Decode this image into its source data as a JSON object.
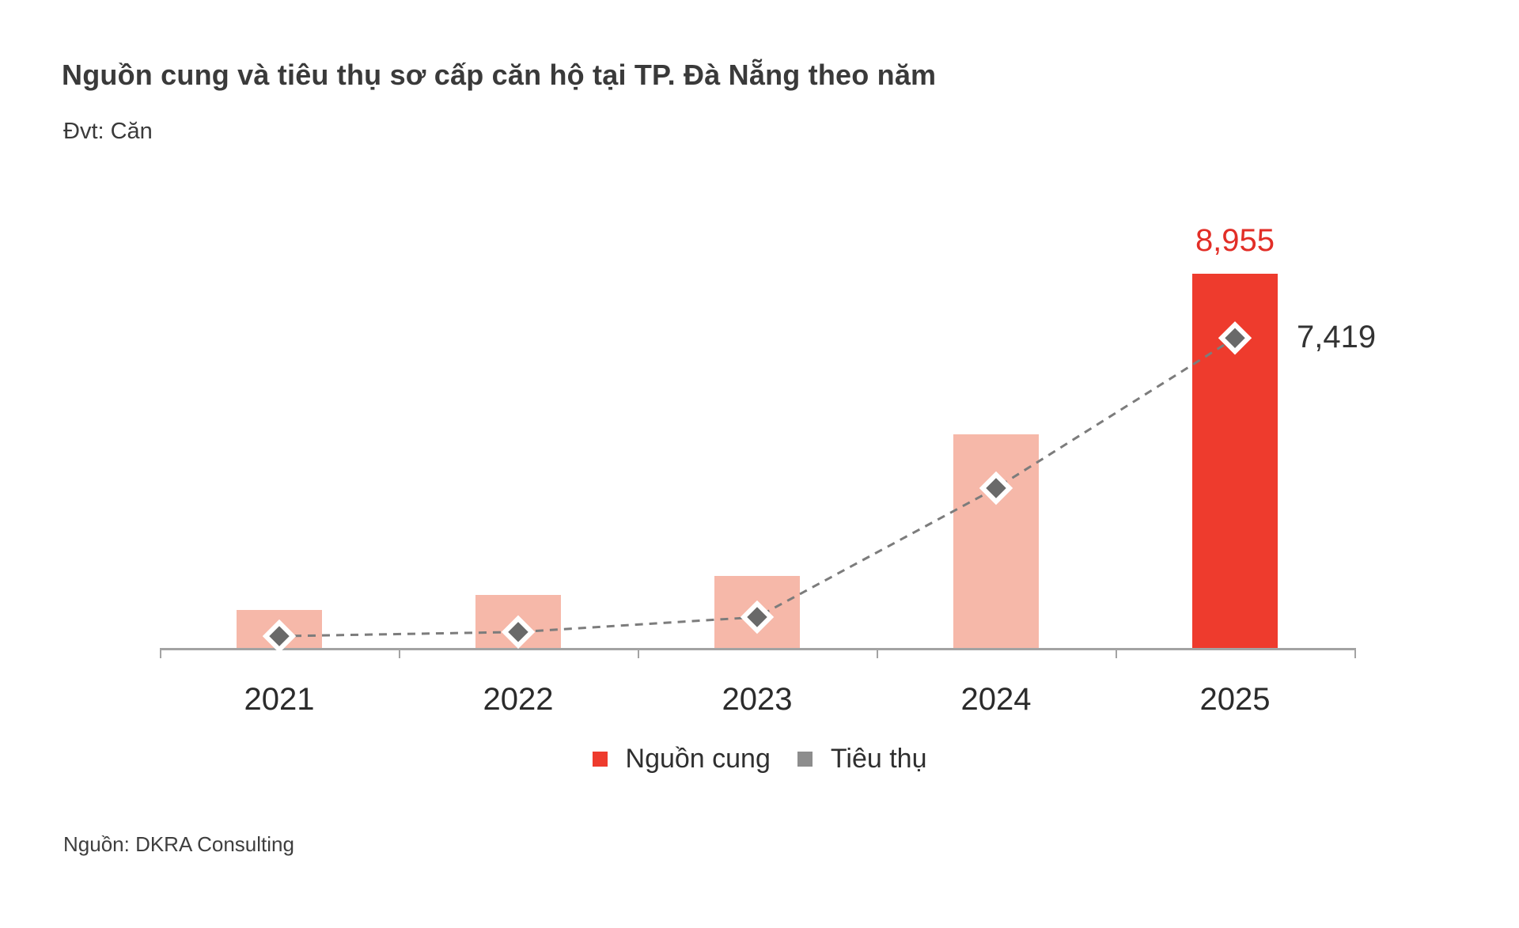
{
  "header": {
    "title": "Nguồn cung và tiêu thụ sơ cấp căn hộ tại TP. Đà Nẵng theo năm",
    "unit_label": "Đvt: Căn"
  },
  "footer": {
    "source": "Nguồn: DKRA Consulting"
  },
  "legend": {
    "items": [
      {
        "label": "Nguồn cung",
        "color": "#ee3b2d"
      },
      {
        "label": "Tiêu thụ",
        "color": "#8d8d8d"
      }
    ]
  },
  "colors": {
    "bar_past": "#f6b8a9",
    "bar_current": "#ee3b2d",
    "bar_label": "#e22e27",
    "line": "#7c7c7c",
    "marker_fill": "#696969",
    "marker_border": "#ffffff",
    "axis": "#a3a3a3",
    "x_tick_label": "#2b2b2b",
    "line_label": "#333333",
    "title_text": "#3a3a3a"
  },
  "chart_data": {
    "type": "combo_bar_line",
    "title": "Nguồn cung và tiêu thụ sơ cấp căn hộ tại TP. Đà Nẵng theo năm",
    "unit": "Căn",
    "categories": [
      "2021",
      "2022",
      "2023",
      "2024",
      "2025"
    ],
    "series": [
      {
        "name": "Nguồn cung",
        "type": "bar",
        "values": [
          925,
          1285,
          1740,
          5120,
          8955
        ],
        "data_labels": [
          "",
          "",
          "",
          "",
          "8,955"
        ],
        "highlight_index": 4
      },
      {
        "name": "Tiêu thụ",
        "type": "line",
        "line_style": "dashed",
        "marker": "diamond",
        "values": [
          300,
          400,
          755,
          3835,
          7419
        ],
        "data_labels": [
          "",
          "",
          "",
          "",
          "7,419"
        ]
      }
    ],
    "ylim": [
      0,
      9500
    ],
    "grid": false,
    "y_axis_visible": false,
    "legend_position": "bottom"
  }
}
